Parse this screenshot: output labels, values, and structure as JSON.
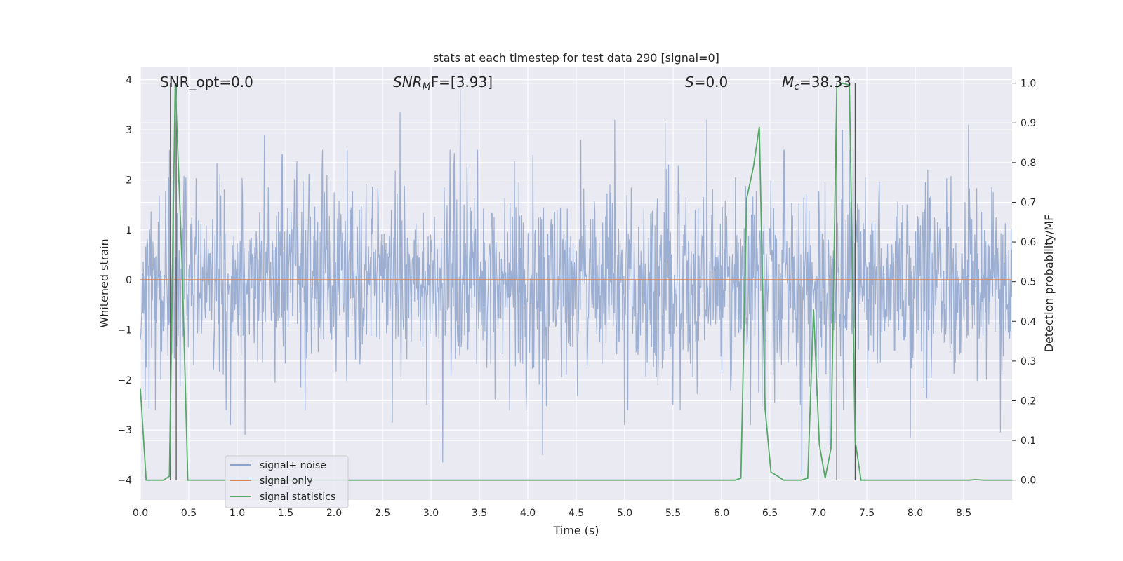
{
  "chart_data": {
    "type": "line",
    "title": "stats at each timestep for test data 290 [signal=0]",
    "xlabel": "Time (s)",
    "ylabel": "Whitened strain",
    "y2label": "Detection probability/MF",
    "xlim": [
      0.0,
      9.0
    ],
    "ylim": [
      -4.4,
      4.25
    ],
    "y2lim": [
      -0.05,
      1.04
    ],
    "xticks": [
      "0.0",
      "0.5",
      "1.0",
      "1.5",
      "2.0",
      "2.5",
      "3.0",
      "3.5",
      "4.0",
      "4.5",
      "5.0",
      "5.5",
      "6.0",
      "6.5",
      "7.0",
      "7.5",
      "8.0",
      "8.5"
    ],
    "xtick_values": [
      0.0,
      0.5,
      1.0,
      1.5,
      2.0,
      2.5,
      3.0,
      3.5,
      4.0,
      4.5,
      5.0,
      5.5,
      6.0,
      6.5,
      7.0,
      7.5,
      8.0,
      8.5
    ],
    "yticks": [
      "−4",
      "−3",
      "−2",
      "−1",
      "0",
      "1",
      "2",
      "3",
      "4"
    ],
    "ytick_values": [
      -4,
      -3,
      -2,
      -1,
      0,
      1,
      2,
      3,
      4
    ],
    "y2ticks": [
      "0.0",
      "0.1",
      "0.2",
      "0.3",
      "0.4",
      "0.5",
      "0.6",
      "0.7",
      "0.8",
      "0.9",
      "1.0"
    ],
    "y2tick_values": [
      0.0,
      0.1,
      0.2,
      0.3,
      0.4,
      0.5,
      0.6,
      0.7,
      0.8,
      0.9,
      1.0
    ],
    "grid": true,
    "legend_position": "lower-left",
    "annotations": {
      "snr_opt": "SNR_opt=0.0",
      "snr_mf_main": "SNR",
      "snr_mf_sub": "M",
      "snr_mf_rest": "F=[3.93]",
      "s_main": "S",
      "s_rest": "=0.0",
      "mc_main": "M",
      "mc_sub": "c",
      "mc_rest": "=38.33"
    },
    "series": [
      {
        "name": "signal+ noise",
        "color": "#8ea4cc",
        "x_start": 0.0,
        "x_end": 9.0,
        "n_samples": 1800,
        "typical_envelope": [
          -1.5,
          1.5
        ],
        "peaks": [
          [
            0.3,
            2.6
          ],
          [
            0.93,
            3.0
          ],
          [
            1.28,
            2.9
          ],
          [
            2.6,
            3.0
          ],
          [
            2.68,
            3.35
          ],
          [
            3.3,
            3.95
          ],
          [
            4.05,
            2.5
          ],
          [
            4.55,
            2.8
          ],
          [
            4.9,
            3.2
          ],
          [
            5.42,
            3.15
          ],
          [
            5.85,
            3.2
          ],
          [
            7.25,
            3.0
          ],
          [
            8.55,
            3.1
          ]
        ],
        "troughs": [
          [
            0.05,
            -2.4
          ],
          [
            0.93,
            -2.9
          ],
          [
            1.08,
            -3.1
          ],
          [
            2.6,
            -2.85
          ],
          [
            3.12,
            -3.65
          ],
          [
            4.15,
            -3.5
          ],
          [
            5.0,
            -2.9
          ],
          [
            5.5,
            -2.5
          ],
          [
            6.3,
            -2.9
          ],
          [
            6.83,
            -3.9
          ],
          [
            7.12,
            -3.3
          ],
          [
            7.95,
            -3.15
          ],
          [
            8.88,
            -3.05
          ]
        ]
      },
      {
        "name": "signal only",
        "color": "#dd8452",
        "x": [
          0.0,
          9.0
        ],
        "y": [
          0.0,
          0.0
        ]
      },
      {
        "name": "signal statistics",
        "color": "#55a868",
        "axis": "right",
        "x": [
          0.0,
          0.06,
          0.12,
          0.18,
          0.24,
          0.3,
          0.36,
          0.43,
          0.49,
          0.56,
          6.14,
          6.2,
          6.26,
          6.33,
          6.39,
          6.45,
          6.51,
          6.58,
          6.64,
          6.7,
          6.82,
          6.89,
          6.95,
          7.01,
          7.07,
          7.13,
          7.19,
          7.25,
          7.32,
          7.38,
          7.44,
          7.5,
          7.56,
          8.56,
          8.62,
          8.7,
          9.0
        ],
        "y": [
          0.23,
          0.0,
          0.0,
          0.0,
          0.0,
          0.01,
          1.0,
          0.55,
          0.0,
          0.0,
          0.0,
          0.005,
          0.71,
          0.79,
          0.89,
          0.18,
          0.02,
          0.01,
          0.0,
          0.0,
          0.0,
          0.005,
          0.43,
          0.09,
          0.005,
          0.08,
          0.99,
          1.0,
          0.995,
          0.1,
          0.0,
          0.0,
          0.0,
          0.0,
          0.0015,
          0.0,
          0.0
        ]
      }
    ],
    "vertical_markers": [
      0.31,
      0.37,
      7.19,
      7.38
    ],
    "legend": [
      "signal+ noise",
      "signal only",
      "signal statistics"
    ]
  }
}
